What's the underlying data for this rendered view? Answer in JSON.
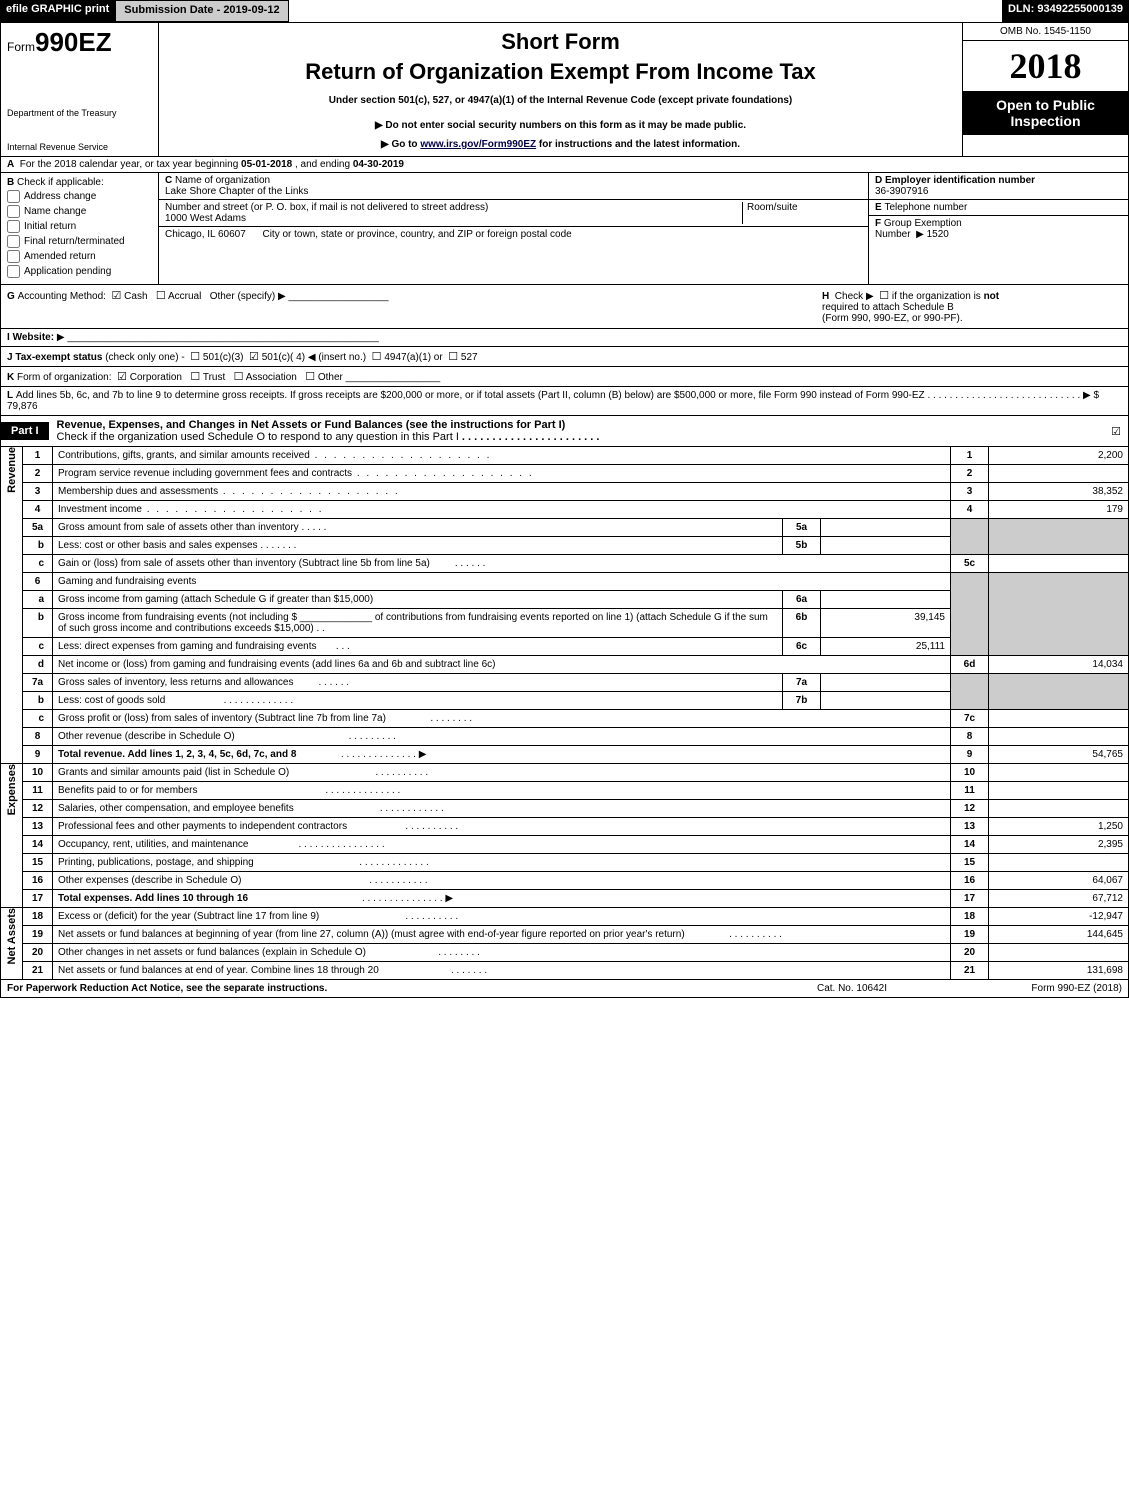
{
  "topbar": {
    "efile": "efile GRAPHIC print",
    "submission_label": "Submission Date - 2019-09-12",
    "dln": "DLN: 93492255000139"
  },
  "header": {
    "form_prefix": "Form",
    "form_number": "990EZ",
    "dept": "Department of the Treasury",
    "irs": "Internal Revenue Service",
    "short_form": "Short Form",
    "return_title": "Return of Organization Exempt From Income Tax",
    "under_section": "Under section 501(c), 527, or 4947(a)(1) of the Internal Revenue Code (except private foundations)",
    "do_not_enter": "Do not enter social security numbers on this form as it may be made public.",
    "goto_prefix": "Go to ",
    "goto_link": "www.irs.gov/Form990EZ",
    "goto_suffix": " for instructions and the latest information.",
    "omb": "OMB No. 1545-1150",
    "year": "2018",
    "open_public": "Open to Public",
    "inspection": "Inspection"
  },
  "row_a": {
    "label_a": "A",
    "text1": "For the 2018 calendar year, or tax year beginning ",
    "begin_date": "05-01-2018",
    "text2": ", and ending ",
    "end_date": "04-30-2019"
  },
  "col_b": {
    "label": "B",
    "text": "Check if applicable:",
    "address_change": "Address change",
    "name_change": "Name change",
    "initial_return": "Initial return",
    "final_return": "Final return/terminated",
    "amended_return": "Amended return",
    "application_pending": "Application pending"
  },
  "col_c": {
    "c_label": "C",
    "name_label": "Name of organization",
    "org_name": "Lake Shore Chapter of the Links",
    "street_label": "Number and street (or P. O. box, if mail is not delivered to street address)",
    "street": "1000 West Adams",
    "room_label": "Room/suite",
    "room": "",
    "city_label": "City or town, state or province, country, and ZIP or foreign postal code",
    "city": "Chicago, IL  60607"
  },
  "col_d": {
    "d_label": "D",
    "ein_label": "Employer identification number",
    "ein": "36-3907916",
    "e_label": "E",
    "tel_label": "Telephone number",
    "tel": "",
    "f_label": "F",
    "group_label": "Group Exemption",
    "number_label": "Number",
    "group_number": "1520"
  },
  "row_g": {
    "g_label": "G",
    "text": "Accounting Method:",
    "cash": "Cash",
    "accrual": "Accrual",
    "other": "Other (specify)"
  },
  "row_h": {
    "h_label": "H",
    "text1": "Check",
    "text2": "if the organization is",
    "text_not": "not",
    "text3": "required to attach Schedule B",
    "text4": "(Form 990, 990-EZ, or 990-PF)."
  },
  "row_i": {
    "label": "I",
    "text": "Website:"
  },
  "row_j": {
    "label": "J",
    "text": "Tax-exempt status",
    "sub": "(check only one) -",
    "c3": "501(c)(3)",
    "c4": "501(c)( 4)",
    "insert": "(insert no.)",
    "a1": "4947(a)(1) or",
    "n527": "527"
  },
  "row_k": {
    "label": "K",
    "text": "Form of organization:",
    "corp": "Corporation",
    "trust": "Trust",
    "assoc": "Association",
    "other": "Other"
  },
  "row_l": {
    "label": "L",
    "text1": "Add lines 5b, 6c, and 7b to line 9 to determine gross receipts. If gross receipts are $200,000 or more, or if total assets (Part II, column (B) below) are $500,000 or more, file Form 990 instead of Form 990-EZ",
    "amount": "$ 79,876"
  },
  "part1": {
    "tag": "Part I",
    "title": "Revenue, Expenses, and Changes in Net Assets or Fund Balances (see the instructions for Part I)",
    "check_text": "Check if the organization used Schedule O to respond to any question in this Part I"
  },
  "sidelabels": {
    "revenue": "Revenue",
    "expenses": "Expenses",
    "netassets": "Net Assets"
  },
  "lines": {
    "l1": {
      "num": "1",
      "desc": "Contributions, gifts, grants, and similar amounts received",
      "rn": "1",
      "val": "2,200"
    },
    "l2": {
      "num": "2",
      "desc": "Program service revenue including government fees and contracts",
      "rn": "2",
      "val": ""
    },
    "l3": {
      "num": "3",
      "desc": "Membership dues and assessments",
      "rn": "3",
      "val": "38,352"
    },
    "l4": {
      "num": "4",
      "desc": "Investment income",
      "rn": "4",
      "val": "179"
    },
    "l5a": {
      "num": "5a",
      "desc": "Gross amount from sale of assets other than inventory",
      "sn": "5a",
      "sv": ""
    },
    "l5b": {
      "num": "b",
      "desc": "Less: cost or other basis and sales expenses",
      "sn": "5b",
      "sv": ""
    },
    "l5c": {
      "num": "c",
      "desc": "Gain or (loss) from sale of assets other than inventory (Subtract line 5b from line 5a)",
      "rn": "5c",
      "val": ""
    },
    "l6": {
      "num": "6",
      "desc": "Gaming and fundraising events"
    },
    "l6a": {
      "num": "a",
      "desc": "Gross income from gaming (attach Schedule G if greater than $15,000)",
      "sn": "6a",
      "sv": ""
    },
    "l6b": {
      "num": "b",
      "desc1": "Gross income from fundraising events (not including $",
      "desc2": "of contributions from fundraising events reported on line 1) (attach Schedule G if the sum of such gross income and contributions exceeds $15,000)",
      "sn": "6b",
      "sv": "39,145"
    },
    "l6c": {
      "num": "c",
      "desc": "Less: direct expenses from gaming and fundraising events",
      "sn": "6c",
      "sv": "25,111"
    },
    "l6d": {
      "num": "d",
      "desc": "Net income or (loss) from gaming and fundraising events (add lines 6a and 6b and subtract line 6c)",
      "rn": "6d",
      "val": "14,034"
    },
    "l7a": {
      "num": "7a",
      "desc": "Gross sales of inventory, less returns and allowances",
      "sn": "7a",
      "sv": ""
    },
    "l7b": {
      "num": "b",
      "desc": "Less: cost of goods sold",
      "sn": "7b",
      "sv": ""
    },
    "l7c": {
      "num": "c",
      "desc": "Gross profit or (loss) from sales of inventory (Subtract line 7b from line 7a)",
      "rn": "7c",
      "val": ""
    },
    "l8": {
      "num": "8",
      "desc": "Other revenue (describe in Schedule O)",
      "rn": "8",
      "val": ""
    },
    "l9": {
      "num": "9",
      "desc": "Total revenue. Add lines 1, 2, 3, 4, 5c, 6d, 7c, and 8",
      "rn": "9",
      "val": "54,765"
    },
    "l10": {
      "num": "10",
      "desc": "Grants and similar amounts paid (list in Schedule O)",
      "rn": "10",
      "val": ""
    },
    "l11": {
      "num": "11",
      "desc": "Benefits paid to or for members",
      "rn": "11",
      "val": ""
    },
    "l12": {
      "num": "12",
      "desc": "Salaries, other compensation, and employee benefits",
      "rn": "12",
      "val": ""
    },
    "l13": {
      "num": "13",
      "desc": "Professional fees and other payments to independent contractors",
      "rn": "13",
      "val": "1,250"
    },
    "l14": {
      "num": "14",
      "desc": "Occupancy, rent, utilities, and maintenance",
      "rn": "14",
      "val": "2,395"
    },
    "l15": {
      "num": "15",
      "desc": "Printing, publications, postage, and shipping",
      "rn": "15",
      "val": ""
    },
    "l16": {
      "num": "16",
      "desc": "Other expenses (describe in Schedule O)",
      "rn": "16",
      "val": "64,067"
    },
    "l17": {
      "num": "17",
      "desc": "Total expenses. Add lines 10 through 16",
      "rn": "17",
      "val": "67,712"
    },
    "l18": {
      "num": "18",
      "desc": "Excess or (deficit) for the year (Subtract line 17 from line 9)",
      "rn": "18",
      "val": "-12,947"
    },
    "l19": {
      "num": "19",
      "desc": "Net assets or fund balances at beginning of year (from line 27, column (A)) (must agree with end-of-year figure reported on prior year's return)",
      "rn": "19",
      "val": "144,645"
    },
    "l20": {
      "num": "20",
      "desc": "Other changes in net assets or fund balances (explain in Schedule O)",
      "rn": "20",
      "val": ""
    },
    "l21": {
      "num": "21",
      "desc": "Net assets or fund balances at end of year. Combine lines 18 through 20",
      "rn": "21",
      "val": "131,698"
    }
  },
  "footer": {
    "left": "For Paperwork Reduction Act Notice, see the separate instructions.",
    "mid": "Cat. No. 10642I",
    "right": "Form 990-EZ (2018)"
  },
  "colors": {
    "black": "#000000",
    "white": "#ffffff",
    "gray": "#cccccc"
  }
}
